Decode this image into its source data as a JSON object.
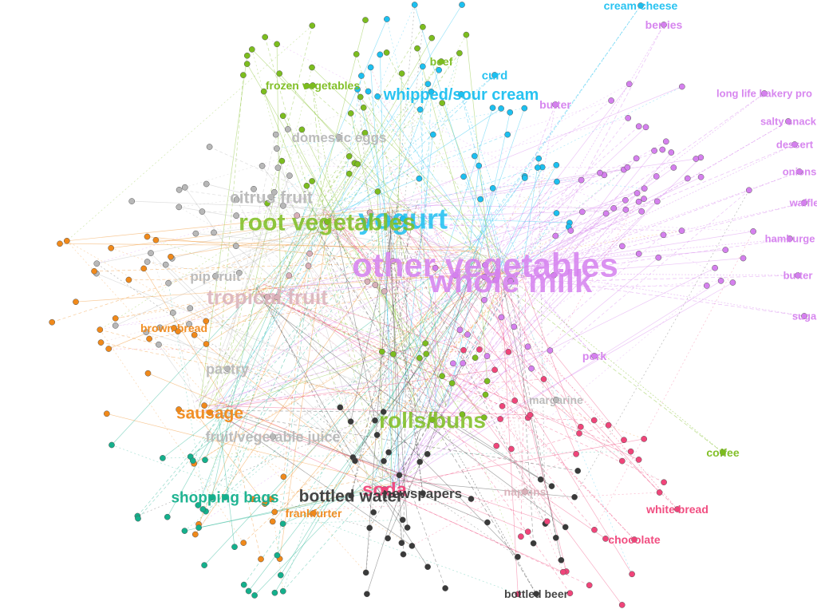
{
  "palette": {
    "green": "#7cbd1e",
    "cyan": "#1cc0f0",
    "violet": "#d580ee",
    "gray": "#b8b8b8",
    "orange": "#f0891a",
    "teal": "#14b08c",
    "dark": "#3a3a3a",
    "pink": "#f0457a",
    "rose": "#d9b0b8"
  },
  "nodes": [
    {
      "id": "whole-milk",
      "label": "whole milk",
      "group": "violet",
      "size": 3.2
    },
    {
      "id": "other-vegetables",
      "label": "other vegetables",
      "group": "violet",
      "size": 3.0
    },
    {
      "id": "yogurt",
      "label": "yogurt",
      "group": "cyan",
      "size": 2.5
    },
    {
      "id": "root-vegetables",
      "label": "root vegetables",
      "group": "green",
      "size": 2.2
    },
    {
      "id": "tropical-fruit",
      "label": "tropical fruit",
      "group": "rose",
      "size": 1.9
    },
    {
      "id": "rolls-buns",
      "label": "rolls/buns",
      "group": "green",
      "size": 2.0
    },
    {
      "id": "soda",
      "label": "soda",
      "group": "pink",
      "size": 1.7
    },
    {
      "id": "bottled-water",
      "label": "bottled water",
      "group": "dark",
      "size": 1.5
    },
    {
      "id": "citrus-fruit",
      "label": "citrus fruit",
      "group": "gray",
      "size": 1.5
    },
    {
      "id": "whipped-sour-cream",
      "label": "whipped/sour cream",
      "group": "cyan",
      "size": 1.45
    },
    {
      "id": "sausage",
      "label": "sausage",
      "group": "orange",
      "size": 1.55
    },
    {
      "id": "shopping-bags",
      "label": "shopping bags",
      "group": "teal",
      "size": 1.35
    },
    {
      "id": "fruit-vegetable-juice",
      "label": "fruit/vegetable juice",
      "group": "gray",
      "size": 1.35
    },
    {
      "id": "pastry",
      "label": "pastry",
      "group": "gray",
      "size": 1.35
    },
    {
      "id": "pip-fruit",
      "label": "pip fruit",
      "group": "gray",
      "size": 1.3
    },
    {
      "id": "domestic-eggs",
      "label": "domestic eggs",
      "group": "gray",
      "size": 1.25
    },
    {
      "id": "newspapers",
      "label": "newspapers",
      "group": "dark",
      "size": 1.25
    },
    {
      "id": "frozen-vegetables",
      "label": "frozen vegetables",
      "group": "green",
      "size": 1.05
    },
    {
      "id": "beef",
      "label": "beef",
      "group": "green",
      "size": 1.05
    },
    {
      "id": "curd",
      "label": "curd",
      "group": "cyan",
      "size": 1.1
    },
    {
      "id": "butter",
      "label": "butter",
      "group": "violet",
      "size": 1.05
    },
    {
      "id": "cream-cheese",
      "label": "cream cheese",
      "group": "cyan",
      "size": 1.0
    },
    {
      "id": "berries",
      "label": "berries",
      "group": "violet",
      "size": 1.0
    },
    {
      "id": "brown-bread",
      "label": "brown bread",
      "group": "orange",
      "size": 1.05
    },
    {
      "id": "pork",
      "label": "pork",
      "group": "violet",
      "size": 1.05
    },
    {
      "id": "margarine",
      "label": "margarine",
      "group": "gray",
      "size": 1.05
    },
    {
      "id": "napkins",
      "label": "napkins",
      "group": "rose",
      "size": 1.0
    },
    {
      "id": "frankfurter",
      "label": "frankfurter",
      "group": "orange",
      "size": 1.05
    },
    {
      "id": "coffee",
      "label": "coffee",
      "group": "green",
      "size": 1.0
    },
    {
      "id": "white-bread",
      "label": "white bread",
      "group": "pink",
      "size": 1.0
    },
    {
      "id": "chocolate",
      "label": "chocolate",
      "group": "pink",
      "size": 1.0
    },
    {
      "id": "bottled-beer",
      "label": "bottled beer",
      "group": "dark",
      "size": 1.0
    },
    {
      "id": "long-life-bakery",
      "label": "long life bakery pro",
      "group": "violet",
      "size": 1.0
    },
    {
      "id": "salty-snack",
      "label": "salty snack",
      "group": "violet",
      "size": 1.0
    },
    {
      "id": "dessert",
      "label": "dessert",
      "group": "violet",
      "size": 1.0
    },
    {
      "id": "onions",
      "label": "onions",
      "group": "violet",
      "size": 1.0
    },
    {
      "id": "waffles",
      "label": "waffle",
      "group": "violet",
      "size": 1.0
    },
    {
      "id": "hamburger",
      "label": "hamburge",
      "group": "violet",
      "size": 1.0
    },
    {
      "id": "butter-milk",
      "label": "butter",
      "group": "violet",
      "size": 1.0
    },
    {
      "id": "sugar",
      "label": "suga",
      "group": "violet",
      "size": 1.0
    }
  ]
}
